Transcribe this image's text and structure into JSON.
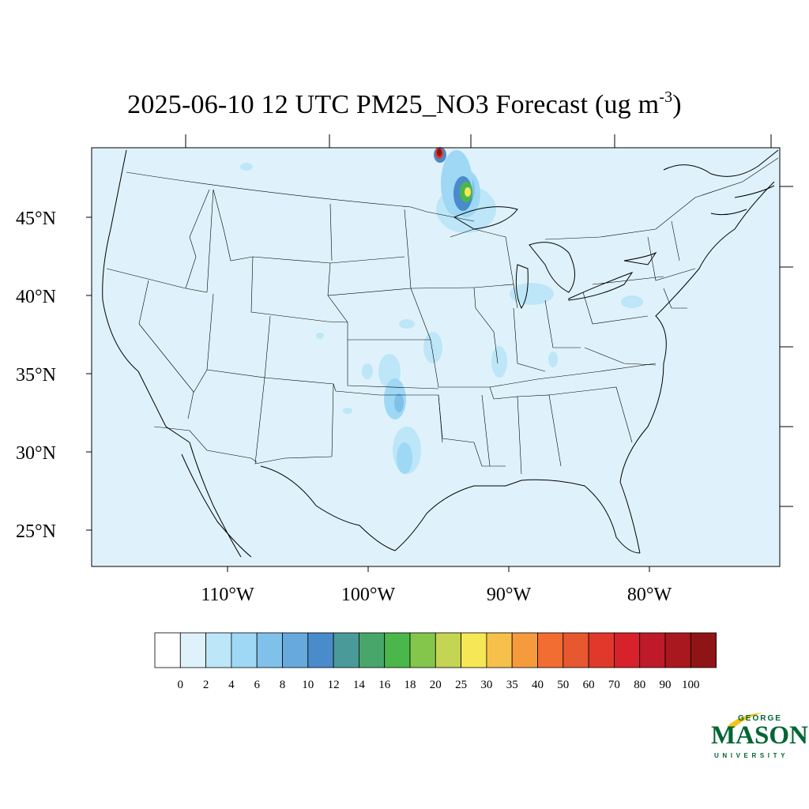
{
  "title": {
    "main": "2025-06-10 12 UTC PM25_NO3 Forecast (ug m",
    "superscript": "-3",
    "close": ")"
  },
  "map": {
    "background_color": "#dff2fb",
    "latitude_labels": [
      "45°N",
      "40°N",
      "35°N",
      "30°N",
      "25°N"
    ],
    "longitude_labels": [
      "110°W",
      "100°W",
      "90°W",
      "80°W"
    ]
  },
  "colorbar": {
    "colors": [
      "#ffffff",
      "#dff2fb",
      "#bde6f8",
      "#9ed8f5",
      "#80c1ea",
      "#67a9dd",
      "#4a8bcb",
      "#4b9a9a",
      "#48a66b",
      "#4ab74a",
      "#84c54c",
      "#c4d554",
      "#f6e756",
      "#f7c04a",
      "#f69a3e",
      "#f26d32",
      "#e75730",
      "#e0382a",
      "#d7212b",
      "#bf1a2a",
      "#a9181e",
      "#8f1416"
    ],
    "labels": [
      "0",
      "2",
      "4",
      "6",
      "8",
      "10",
      "12",
      "14",
      "16",
      "18",
      "20",
      "25",
      "30",
      "35",
      "40",
      "50",
      "60",
      "70",
      "80",
      "90",
      "100"
    ]
  },
  "plumes": [
    {
      "value": 100,
      "color": "#8f1416"
    },
    {
      "value": 18,
      "color": "#4ab74a"
    },
    {
      "value": 30,
      "color": "#f6e756"
    },
    {
      "value": 10,
      "color": "#4a8bcb"
    },
    {
      "value": 4,
      "color": "#bde6f8"
    }
  ],
  "logo": {
    "line1": "GEORGE",
    "line2": "MASON",
    "line3": "UNIVERSITY",
    "color": "#006633",
    "accent": "#f2c31a"
  }
}
